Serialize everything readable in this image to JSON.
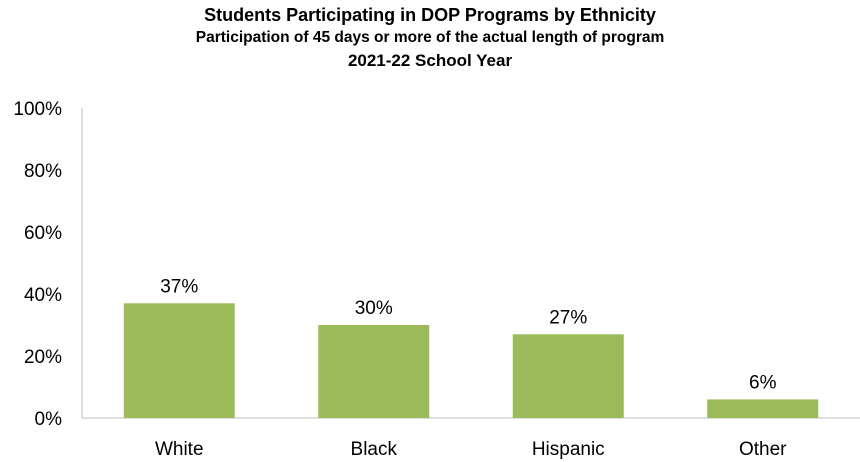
{
  "chart_data": {
    "type": "bar",
    "title": "Students Participating in DOP Programs by Ethnicity",
    "subtitle": "Participation of 45 days or more of the actual length of program",
    "subtitle2": "2021-22 School Year",
    "categories": [
      "White",
      "Black",
      "Hispanic",
      "Other"
    ],
    "values": [
      37,
      30,
      27,
      6
    ],
    "data_labels": [
      "37%",
      "30%",
      "27%",
      "6%"
    ],
    "ylim": [
      0,
      100
    ],
    "yticks": [
      0,
      20,
      40,
      60,
      80,
      100
    ],
    "ytick_labels": [
      "0%",
      "20%",
      "40%",
      "60%",
      "80%",
      "100%"
    ],
    "xlabel": "",
    "ylabel": "",
    "grid": false,
    "legend": "none",
    "bar_color": "#9BBB59"
  }
}
